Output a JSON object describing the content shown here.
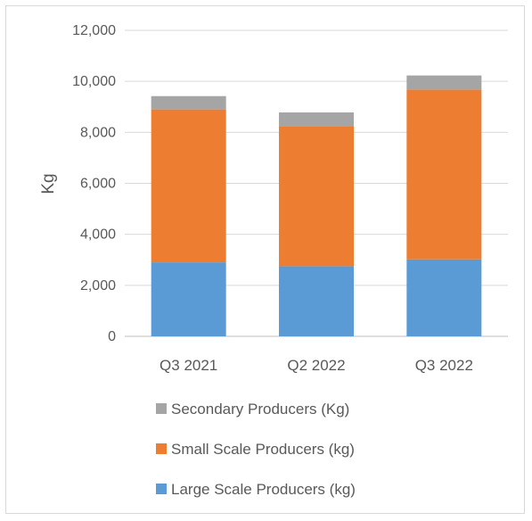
{
  "chart_data": {
    "type": "bar",
    "stacked": true,
    "categories": [
      "Q3 2021",
      "Q2 2022",
      "Q3 2022"
    ],
    "series": [
      {
        "name": "Large Scale Producers (kg)",
        "color": "#5b9bd5",
        "values": [
          2900,
          2750,
          3020
        ]
      },
      {
        "name": "Small Scale Producers (kg)",
        "color": "#ed7d31",
        "values": [
          6000,
          5500,
          6660
        ]
      },
      {
        "name": "Secondary Producers (Kg)",
        "color": "#a5a5a5",
        "values": [
          520,
          530,
          550
        ]
      }
    ],
    "ylabel": "Kg",
    "ylim": [
      0,
      12000
    ],
    "yticks": [
      "0",
      "2,000",
      "4,000",
      "6,000",
      "8,000",
      "10,000",
      "12,000"
    ],
    "ytick_values": [
      0,
      2000,
      4000,
      6000,
      8000,
      10000,
      12000
    ],
    "grid": true,
    "legend_position": "bottom",
    "legend_order": [
      "Secondary Producers (Kg)",
      "Small Scale Producers (kg)",
      "Large Scale Producers (kg)"
    ]
  }
}
